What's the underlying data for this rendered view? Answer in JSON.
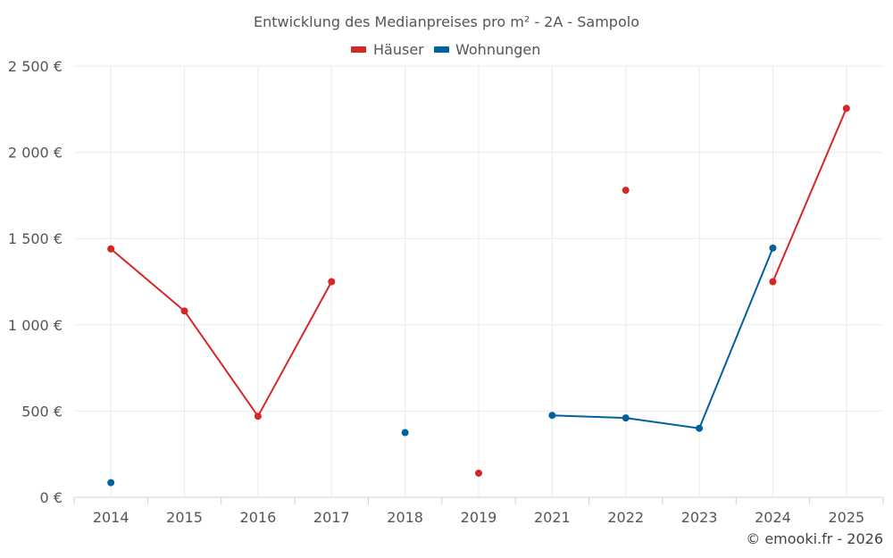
{
  "chart_data": {
    "type": "line",
    "title": "Entwicklung des Medianpreises pro m² - 2A - Sampolo",
    "categories": [
      "2014",
      "2015",
      "2016",
      "2017",
      "2018",
      "2019",
      "2021",
      "2022",
      "2023",
      "2024",
      "2025"
    ],
    "series": [
      {
        "name": "Häuser",
        "color": "#d62728",
        "values": [
          1440,
          1080,
          470,
          1250,
          null,
          140,
          null,
          1780,
          null,
          1250,
          2255
        ]
      },
      {
        "name": "Wohnungen",
        "color": "#00629b",
        "values": [
          85,
          null,
          null,
          null,
          375,
          null,
          475,
          460,
          400,
          1445,
          null
        ]
      }
    ],
    "ylim": [
      0,
      2500
    ],
    "yticks": [
      {
        "value": 0,
        "label": "0 €"
      },
      {
        "value": 500,
        "label": "500 €"
      },
      {
        "value": 1000,
        "label": "1 000 €"
      },
      {
        "value": 1500,
        "label": "1 500 €"
      },
      {
        "value": 2000,
        "label": "2 000 €"
      },
      {
        "value": 2500,
        "label": "2 500 €"
      }
    ],
    "xlabel": "",
    "ylabel": "",
    "grid": true,
    "legend_position": "top-center",
    "credit": "© emooki.fr - 2026"
  }
}
